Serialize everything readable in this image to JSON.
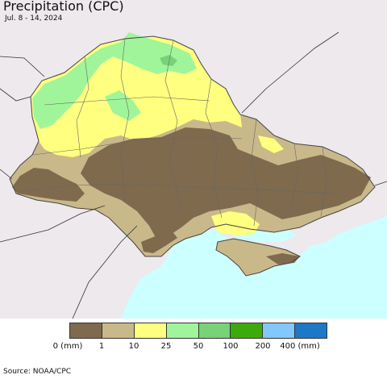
{
  "title": "Precipitation (CPC)",
  "subtitle": "Jul. 8 - 14, 2024",
  "source": "Source: NOAA/CPC",
  "colors": {
    "land_outside": "#ede9ed",
    "sea": "#ccffff",
    "border": "#444444",
    "region_line": "#666666"
  },
  "legend": {
    "unit_left": "0 (mm)",
    "unit_right": "400 (mm)",
    "bins": [
      {
        "color": "#7f6a4e",
        "label": "0 (mm)"
      },
      {
        "color": "#c9b98a",
        "label": "1"
      },
      {
        "color": "#ffff80",
        "label": "10"
      },
      {
        "color": "#a0f59a",
        "label": "25"
      },
      {
        "color": "#78d278",
        "label": "50"
      },
      {
        "color": "#3caa0a",
        "label": "100"
      },
      {
        "color": "#82c8ff",
        "label": "200"
      },
      {
        "color": "#1e78c8",
        "label": "400 (mm)"
      }
    ]
  }
}
